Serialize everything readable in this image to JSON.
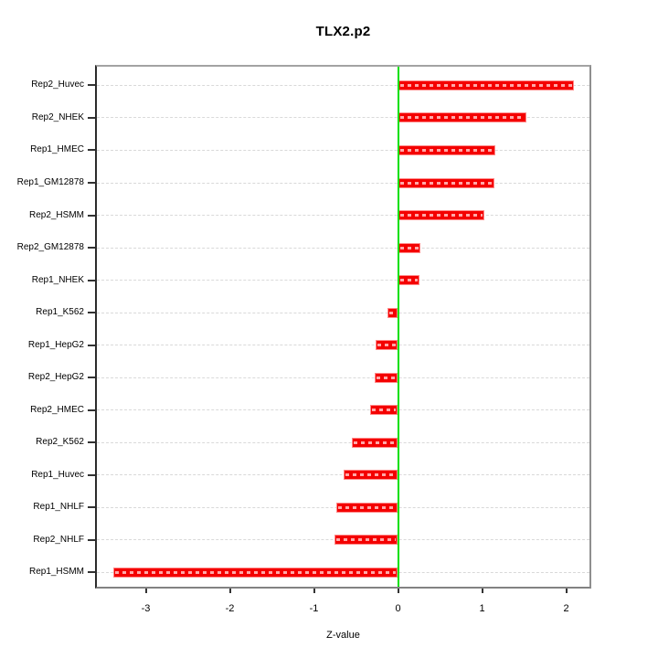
{
  "title": "TLX2.p2",
  "xlabel": "Z-value",
  "colors": {
    "bar_fill": "#f40000",
    "bar_edge": "#ff8a8a",
    "bar_stripe": "#ffa8a8",
    "zero_line": "#00df00",
    "gridline": "#d9d9d9",
    "axis_box": "#8f8f8f",
    "axis_left": "#2b2b2b",
    "tick": "#333333",
    "background": "#ffffff"
  },
  "chart_data": {
    "type": "bar",
    "orientation": "horizontal",
    "title": "TLX2.p2",
    "xlabel": "Z-value",
    "ylabel": "",
    "grid": true,
    "zero_line": true,
    "xlim": [
      -3.6,
      2.3
    ],
    "x_ticks": [
      "-3",
      "-2",
      "-1",
      "0",
      "1",
      "2"
    ],
    "x_tick_values": [
      -3,
      -2,
      -1,
      0,
      1,
      2
    ],
    "categories": [
      "Rep2_Huvec",
      "Rep2_NHEK",
      "Rep1_HMEC",
      "Rep1_GM12878",
      "Rep2_HSMM",
      "Rep2_GM12878",
      "Rep1_NHEK",
      "Rep1_K562",
      "Rep1_HepG2",
      "Rep2_HepG2",
      "Rep2_HMEC",
      "Rep2_K562",
      "Rep1_Huvec",
      "Rep1_NHLF",
      "Rep2_NHLF",
      "Rep1_HSMM"
    ],
    "values": [
      2.09,
      1.53,
      1.16,
      1.15,
      1.03,
      0.27,
      0.26,
      -0.13,
      -0.27,
      -0.28,
      -0.33,
      -0.55,
      -0.65,
      -0.73,
      -0.76,
      -3.39
    ]
  }
}
